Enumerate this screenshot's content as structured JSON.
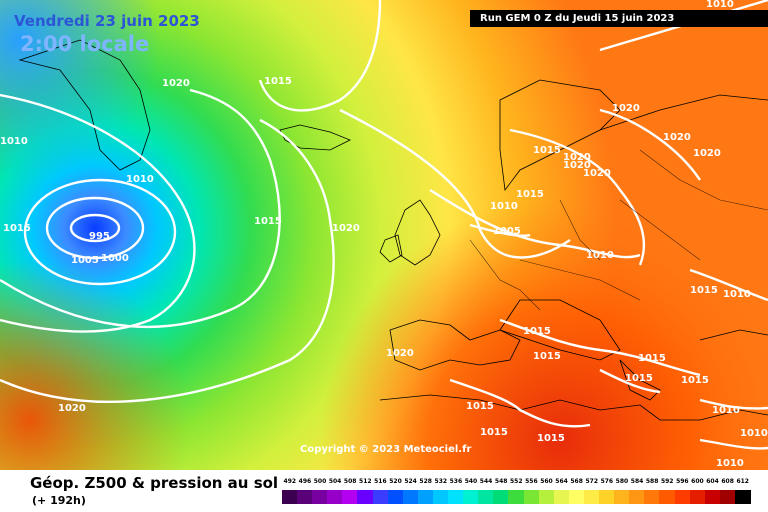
{
  "header": {
    "date": "Vendredi 23 juin 2023",
    "time": "2:00 locale",
    "run": "Run GEM 0 Z du Jeudi 15 juin 2023"
  },
  "copyright": "Copyright © 2023 Meteociel.fr",
  "footer": {
    "title": "Géop. Z500 & pression au sol",
    "subtitle": "(+ 192h)"
  },
  "isobar_labels": [
    "1010",
    "1020",
    "1015",
    "1010",
    "1015",
    "995",
    "1005",
    "1000",
    "1015",
    "1020",
    "1020",
    "1020",
    "1015",
    "1020",
    "1020",
    "1020",
    "1020",
    "1015",
    "1010",
    "1005",
    "1010",
    "1015",
    "1010",
    "1015",
    "1015",
    "1020",
    "1015",
    "1015",
    "1015",
    "1015",
    "1010",
    "1020",
    "1015",
    "1015",
    "1010",
    "1010",
    "1010"
  ],
  "legend": {
    "ticks": [
      "492",
      "496",
      "500",
      "504",
      "508",
      "512",
      "516",
      "520",
      "524",
      "528",
      "532",
      "536",
      "540",
      "544",
      "548",
      "552",
      "556",
      "560",
      "564",
      "568",
      "572",
      "576",
      "580",
      "584",
      "588",
      "592",
      "596",
      "600",
      "604",
      "608",
      "612"
    ],
    "colors": [
      "#3c0050",
      "#5a0078",
      "#7800a0",
      "#9600c8",
      "#b400f0",
      "#6a00ff",
      "#3c3cff",
      "#0050ff",
      "#0078ff",
      "#00a0ff",
      "#00c8ff",
      "#00e0ff",
      "#00f0d2",
      "#00e6a0",
      "#00dc78",
      "#3cdc3c",
      "#78e632",
      "#b4f03c",
      "#e6f550",
      "#ffff64",
      "#ffeb46",
      "#ffd228",
      "#ffb41e",
      "#ff9614",
      "#ff780a",
      "#ff5a00",
      "#ff3c00",
      "#e61e00",
      "#c80000",
      "#a00000",
      "#000000"
    ]
  }
}
